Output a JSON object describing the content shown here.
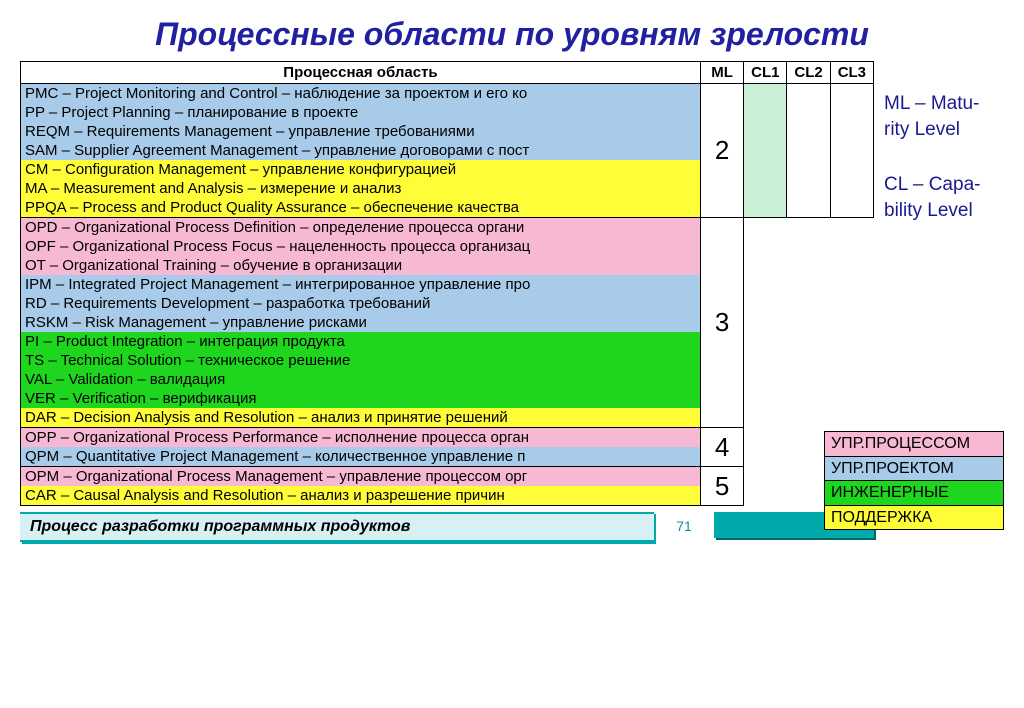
{
  "title": "Процессные области по уровням зрелости",
  "headers": {
    "pa": "Процессная область",
    "ml": "ML",
    "cl1": "CL1",
    "cl2": "CL2",
    "cl3": "CL3"
  },
  "colors": {
    "pink": "#f7b8d4",
    "blue": "#a7cbe8",
    "green": "#1fd61f",
    "yellow": "#fffd38",
    "cl_fill": "#c9f0d4"
  },
  "legend": {
    "process": "УПР.ПРОЦЕССОМ",
    "project": "УПР.ПРОЕКТОМ",
    "engineering": "ИНЖЕНЕРНЫЕ",
    "support": "ПОДДЕРЖКА"
  },
  "defs": {
    "ml": "ML – Matu-rity Level",
    "cl": "CL – Capa-bility Level"
  },
  "groups": [
    {
      "ml": "2",
      "cl1_fill": true,
      "rows": [
        {
          "c": "blue",
          "t": "PMC – Project Monitoring and Control – наблюдение за проектом и его ко"
        },
        {
          "c": "blue",
          "t": "PP – Project Planning – планирование в проекте"
        },
        {
          "c": "blue",
          "t": "REQM – Requirements Management – управление требованиями"
        },
        {
          "c": "blue",
          "t": "SAM – Supplier Agreement Management – управление договорами с пост"
        },
        {
          "c": "yellow",
          "t": "CM – Configuration Management – управление конфигурацией"
        },
        {
          "c": "yellow",
          "t": "MA – Measurement and Analysis – измерение и анализ"
        },
        {
          "c": "yellow",
          "t": "PPQA – Process and Product Quality Assurance – обеспечение качества"
        }
      ]
    },
    {
      "ml": "3",
      "rows": [
        {
          "c": "pink",
          "t": "OPD – Organizational Process Definition – определение процесса органи"
        },
        {
          "c": "pink",
          "t": "OPF – Organizational Process Focus – нацеленность процесса организац"
        },
        {
          "c": "pink",
          "t": "OT – Organizational Training – обучение в организации"
        },
        {
          "c": "blue",
          "t": "IPM – Integrated Project Management – интегрированное управление про"
        },
        {
          "c": "blue",
          "t": "RD – Requirements Development – разработка требований"
        },
        {
          "c": "blue",
          "t": "RSKM – Risk Management – управление рисками"
        },
        {
          "c": "green",
          "t": "PI – Product Integration – интеграция продукта"
        },
        {
          "c": "green",
          "t": "TS – Technical Solution – техническое решение"
        },
        {
          "c": "green",
          "t": "VAL – Validation – валидация"
        },
        {
          "c": "green",
          "t": "VER – Verification – верификация"
        },
        {
          "c": "yellow",
          "t": "DAR – Decision Analysis and Resolution – анализ и принятие решений"
        }
      ]
    },
    {
      "ml": "4",
      "rows": [
        {
          "c": "pink",
          "t": "OPP – Organizational Process Performance – исполнение процесса орган"
        },
        {
          "c": "blue",
          "t": "QPM – Quantitative Project Management – количественное управление п"
        }
      ]
    },
    {
      "ml": "5",
      "rows": [
        {
          "c": "pink",
          "t": "OPM – Organizational Process Management – управление процессом орг"
        },
        {
          "c": "yellow",
          "t": "CAR – Causal Analysis and Resolution – анализ и разрешение причин"
        }
      ]
    }
  ],
  "footer": {
    "label": "Процесс разработки программных продуктов",
    "page": "71"
  }
}
